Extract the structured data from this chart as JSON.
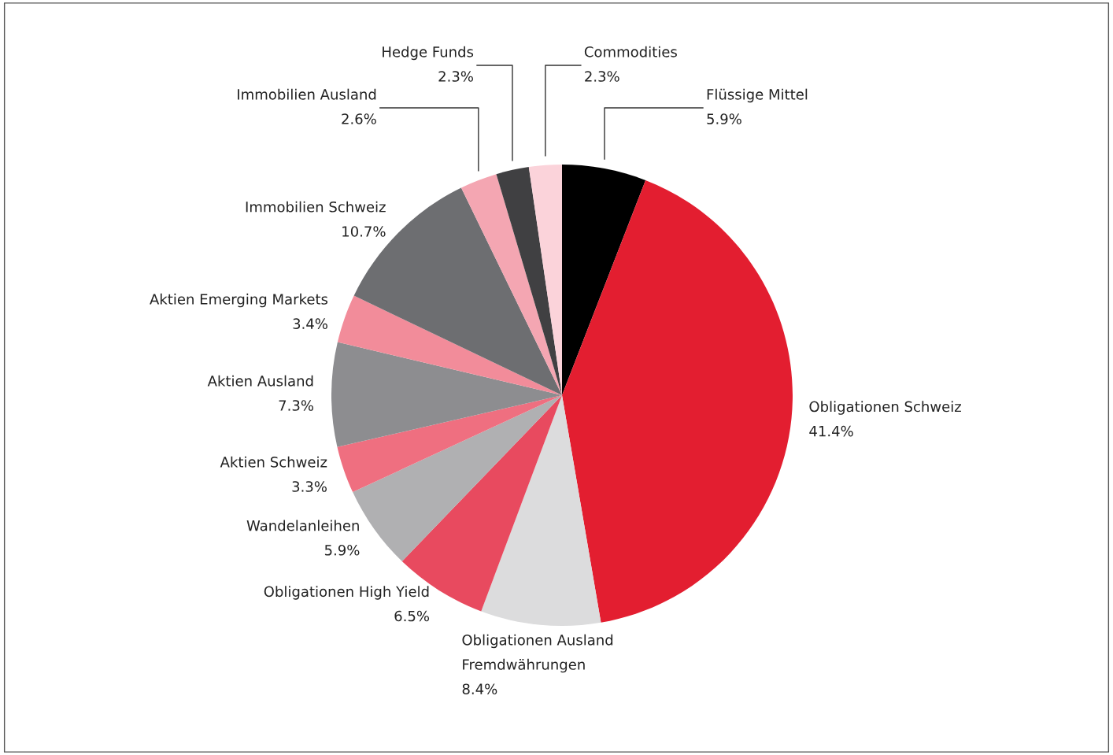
{
  "chart_data": {
    "type": "pie",
    "categories": [
      "Flüssige Mittel",
      "Obligationen Schweiz",
      "Obligationen Ausland\nFremdwährungen",
      "Obligationen High Yield",
      "Wandelanleihen",
      "Aktien Schweiz",
      "Aktien Ausland",
      "Aktien Emerging Markets",
      "Immobilien Schweiz",
      "Immobilien Ausland",
      "Hedge Funds",
      "Commodities"
    ],
    "values": [
      5.9,
      41.4,
      8.4,
      6.5,
      5.9,
      3.3,
      7.3,
      3.4,
      10.7,
      2.6,
      2.3,
      2.3
    ],
    "value_labels": [
      "5.9%",
      "41.4%",
      "8.4%",
      "6.5%",
      "5.9%",
      "3.3%",
      "7.3%",
      "3.4%",
      "10.7%",
      "2.6%",
      "2.3%",
      "2.3%"
    ],
    "colors": [
      "#000000",
      "#e31e30",
      "#dcdcdd",
      "#e84a5f",
      "#b0b0b2",
      "#ef6f80",
      "#8d8d90",
      "#f28c9a",
      "#6d6e71",
      "#f4a6b2",
      "#404042",
      "#fbd3da"
    ]
  }
}
